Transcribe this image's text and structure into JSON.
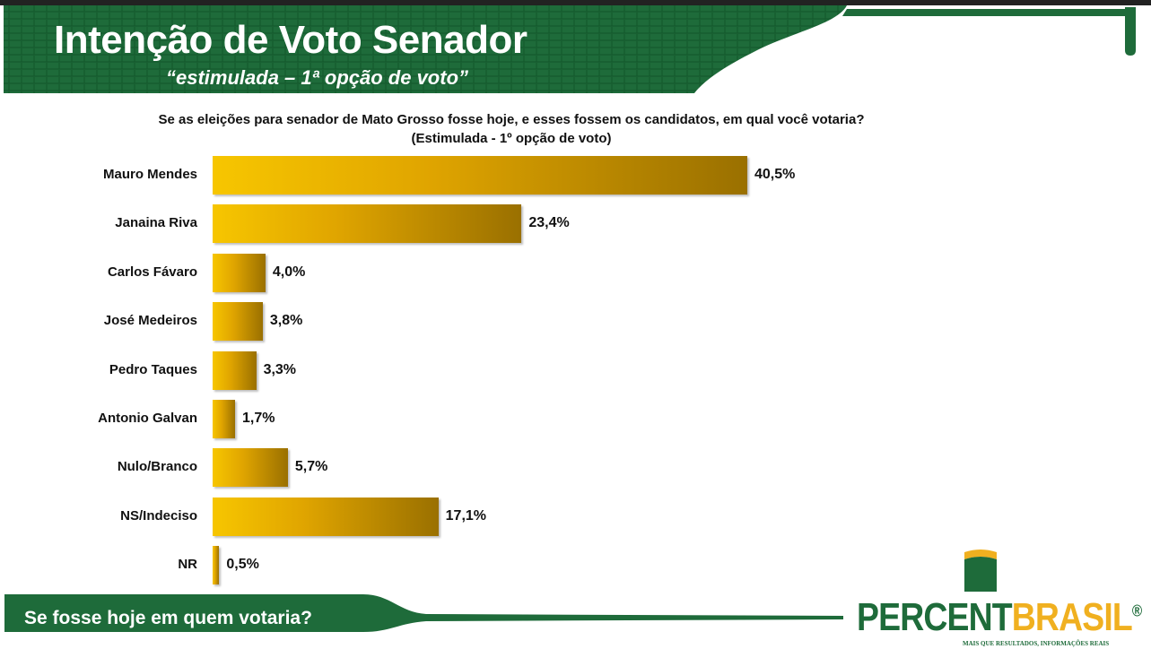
{
  "header": {
    "title": "Intenção de Voto Senador",
    "subtitle": "“estimulada – 1ª opção de voto”"
  },
  "footer": {
    "text": "Se fosse hoje em quem votaria?"
  },
  "logo": {
    "part1": "PERCENT",
    "part2": "BRASIL",
    "reg": "®",
    "tagline": "MAIS QUE RESULTADOS, INFORMAÇÕES REAIS"
  },
  "colors": {
    "green": "#1e6b3a",
    "gold": "#e0a500"
  },
  "chart_data": {
    "type": "bar",
    "orientation": "horizontal",
    "title": "Se as eleições para senador de Mato Grosso fosse hoje, e esses fossem os candidatos, em qual você votaria? (Estimulada - 1º opção de voto)",
    "categories": [
      "Mauro Mendes",
      "Janaina Riva",
      "Carlos Fávaro",
      "José Medeiros",
      "Pedro Taques",
      "Antonio Galvan",
      "Nulo/Branco",
      "NS/Indeciso",
      "NR"
    ],
    "values": [
      40.5,
      23.4,
      4.0,
      3.8,
      3.3,
      1.7,
      5.7,
      17.1,
      0.5
    ],
    "value_labels": [
      "40,5%",
      "23,4%",
      "4,0%",
      "3,8%",
      "3,3%",
      "1,7%",
      "5,7%",
      "17,1%",
      "0,5%"
    ],
    "xlabel": "",
    "ylabel": "",
    "xlim": [
      0,
      45
    ]
  }
}
